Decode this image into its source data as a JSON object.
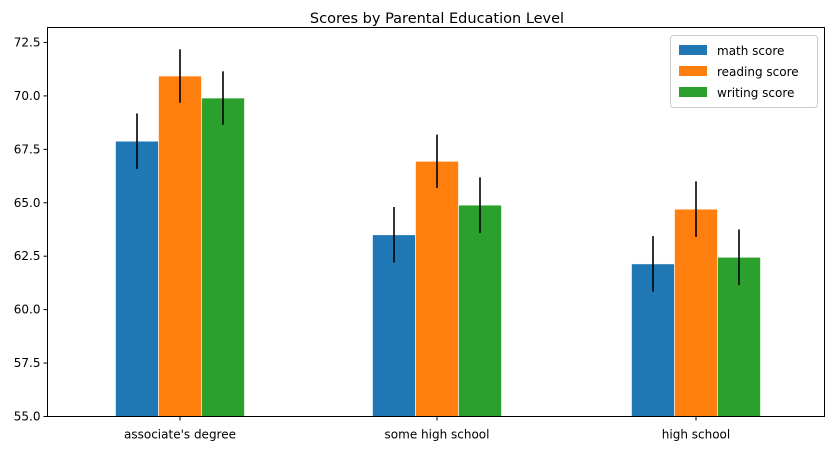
{
  "chart_data": {
    "type": "bar",
    "title": "Scores by Parental Education Level",
    "xlabel": "",
    "ylabel": "",
    "categories": [
      "associate's degree",
      "some high school",
      "high school"
    ],
    "series": [
      {
        "name": "math score",
        "color": "#1f77b4",
        "values": [
          67.88,
          63.5,
          62.14
        ],
        "errors": [
          1.3,
          1.3,
          1.3
        ]
      },
      {
        "name": "reading score",
        "color": "#ff7f0e",
        "values": [
          70.93,
          66.94,
          64.7
        ],
        "errors": [
          1.25,
          1.25,
          1.3
        ]
      },
      {
        "name": "writing score",
        "color": "#2ca02c",
        "values": [
          69.9,
          64.89,
          62.45
        ],
        "errors": [
          1.25,
          1.3,
          1.3
        ]
      }
    ],
    "ylim": [
      55,
      73.2
    ],
    "yticks": [
      "55.0",
      "57.5",
      "60.0",
      "62.5",
      "65.0",
      "67.5",
      "70.0",
      "72.5"
    ],
    "error_bar_color": "#000000",
    "legend_position": "top-right",
    "grid": false
  }
}
